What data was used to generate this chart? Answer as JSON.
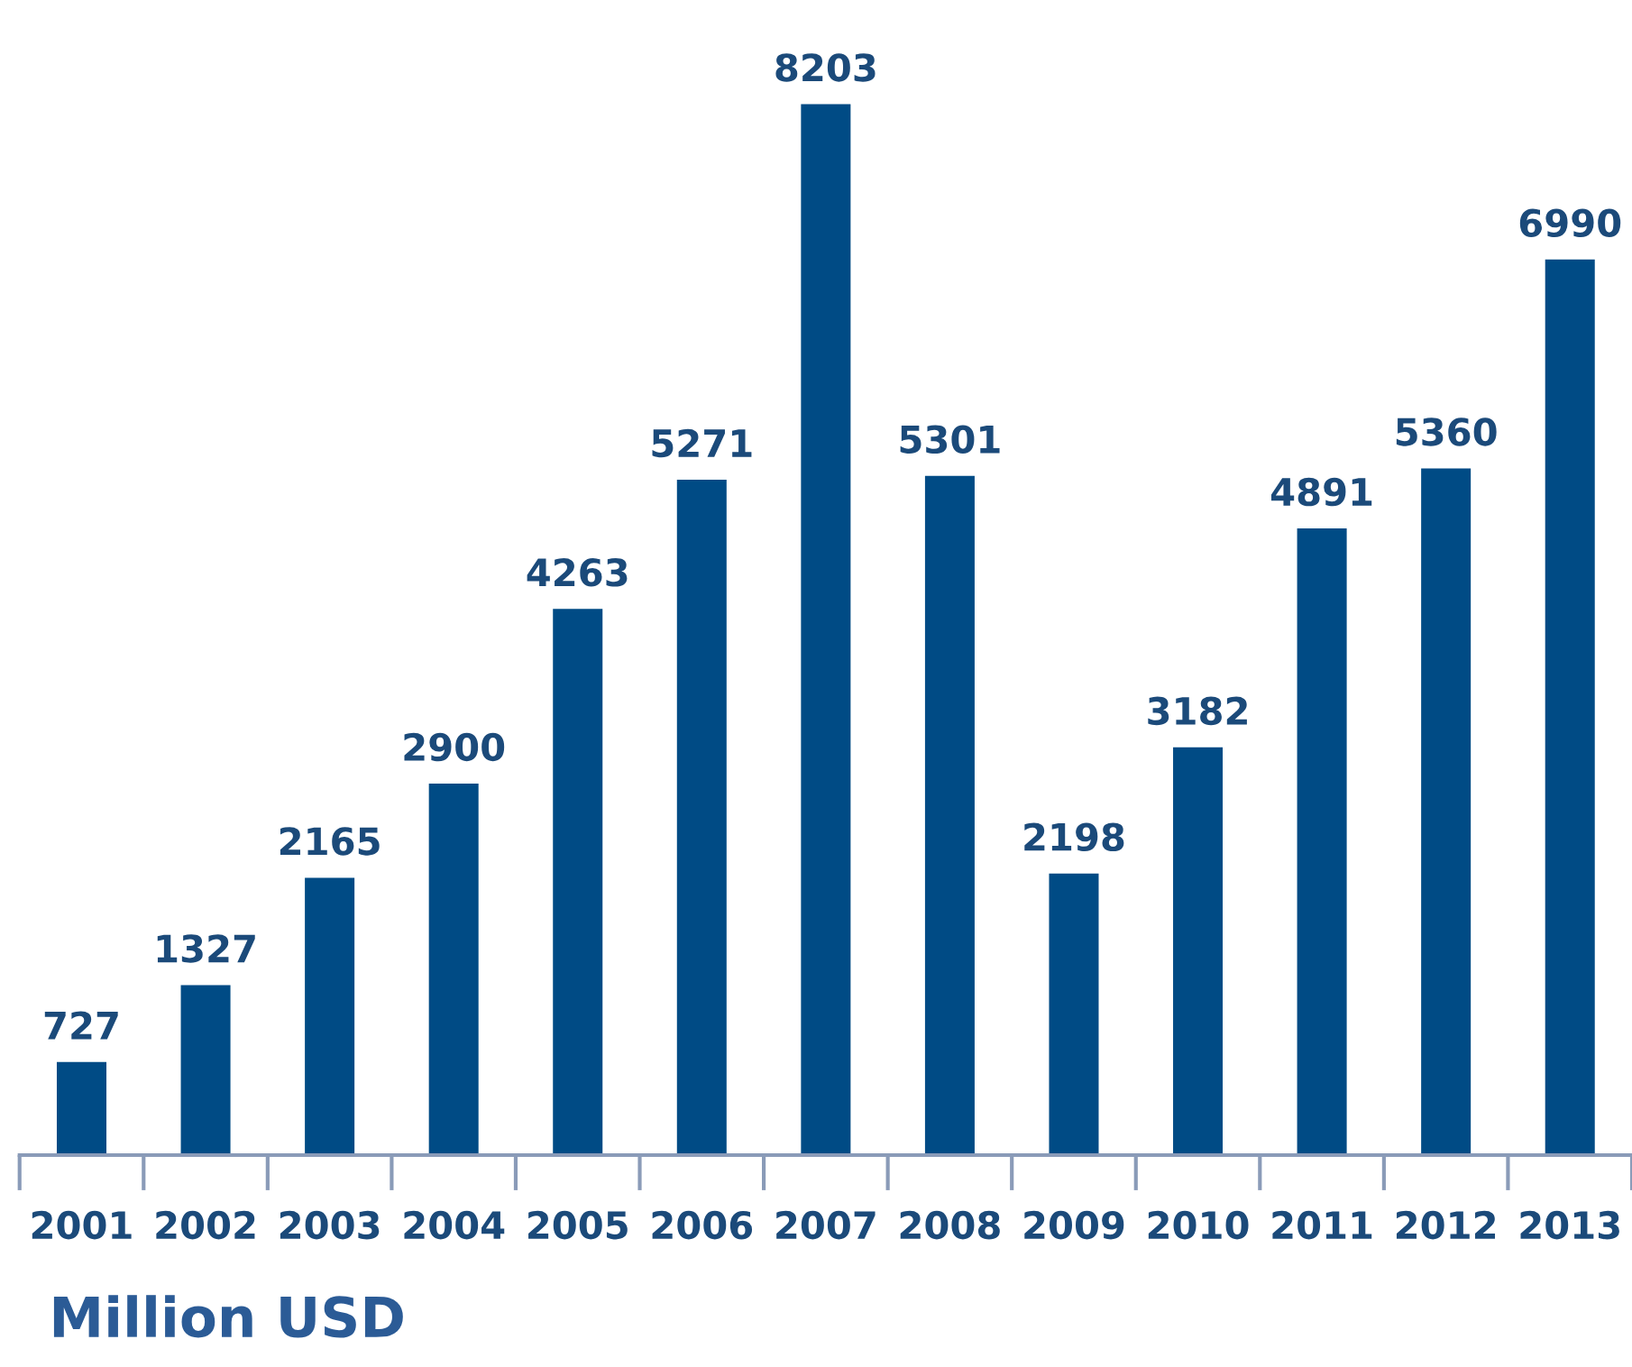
{
  "chart_data": {
    "type": "bar",
    "categories": [
      "2001",
      "2002",
      "2003",
      "2004",
      "2005",
      "2006",
      "2007",
      "2008",
      "2009",
      "2010",
      "2011",
      "2012",
      "2013"
    ],
    "values": [
      727,
      1327,
      2165,
      2900,
      4263,
      5271,
      8203,
      5301,
      2198,
      3182,
      4891,
      5360,
      6990
    ],
    "color": "#004b85",
    "data_labels": true,
    "tick_labels": "x",
    "grid": false,
    "legend": false,
    "annotations": [
      "Million USD"
    ]
  }
}
